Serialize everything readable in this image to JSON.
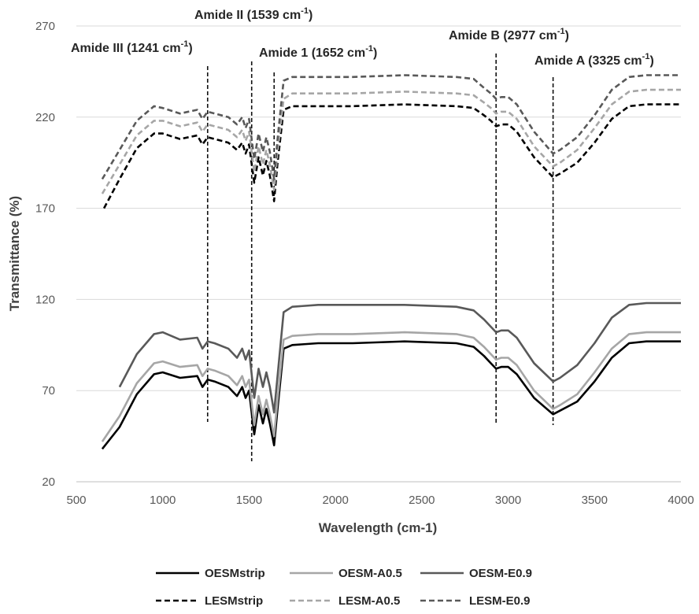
{
  "chart_data": {
    "type": "line",
    "title": "",
    "xlabel": "Wavelength (cm-1)",
    "ylabel": "Transmittance (%)",
    "xlim": [
      500,
      4000
    ],
    "ylim": [
      20,
      270
    ],
    "x_ticks": [
      500,
      1000,
      1500,
      2000,
      2500,
      3000,
      3500,
      4000
    ],
    "y_ticks": [
      20,
      70,
      120,
      170,
      220,
      270
    ],
    "grid": "horizontal",
    "legend_position": "bottom",
    "annotations": [
      {
        "id": "amide-iii",
        "base": "Amide III (1241 cm",
        "sup": "-1",
        "tail": ")",
        "x": 1260
      },
      {
        "id": "amide-ii",
        "base": "Amide II (1539 cm",
        "sup": "-1",
        "tail": ")",
        "x": 1515
      },
      {
        "id": "amide-1",
        "base": "Amide 1 (1652 cm",
        "sup": "-1",
        "tail": ")",
        "x": 1645
      },
      {
        "id": "amide-b",
        "base": "Amide B (2977 cm",
        "sup": "-1",
        "tail": ")",
        "x": 2930
      },
      {
        "id": "amide-a",
        "base": "Amide A (3325 cm",
        "sup": "-1",
        "tail": ")",
        "x": 3260
      }
    ],
    "series": [
      {
        "name": "OESMstrip",
        "color": "#000000",
        "dash": "solid",
        "x": [
          650,
          750,
          850,
          950,
          1000,
          1100,
          1200,
          1230,
          1260,
          1300,
          1380,
          1430,
          1460,
          1480,
          1500,
          1530,
          1555,
          1580,
          1600,
          1620,
          1645,
          1665,
          1700,
          1750,
          1900,
          2100,
          2400,
          2700,
          2800,
          2860,
          2900,
          2930,
          2960,
          3000,
          3050,
          3150,
          3260,
          3300,
          3400,
          3500,
          3600,
          3700,
          3800,
          4000
        ],
        "y": [
          38,
          50,
          68,
          79,
          80,
          77,
          78,
          72,
          76,
          75,
          72,
          67,
          72,
          66,
          70,
          46,
          62,
          52,
          60,
          52,
          40,
          60,
          93,
          95,
          96,
          96,
          97,
          96,
          94,
          89,
          85,
          82,
          83,
          83,
          79,
          66,
          57,
          59,
          64,
          75,
          88,
          96,
          97,
          97
        ]
      },
      {
        "name": "OESM-A0.5",
        "color": "#a6a6a6",
        "dash": "solid",
        "x": [
          650,
          750,
          850,
          950,
          1000,
          1100,
          1200,
          1230,
          1260,
          1300,
          1380,
          1430,
          1460,
          1480,
          1500,
          1530,
          1555,
          1580,
          1600,
          1620,
          1645,
          1665,
          1700,
          1750,
          1900,
          2100,
          2400,
          2700,
          2800,
          2860,
          2900,
          2930,
          2960,
          3000,
          3050,
          3150,
          3260,
          3300,
          3400,
          3500,
          3600,
          3700,
          3800,
          4000
        ],
        "y": [
          42,
          56,
          74,
          85,
          86,
          83,
          84,
          78,
          82,
          81,
          78,
          73,
          78,
          72,
          76,
          51,
          67,
          57,
          65,
          57,
          45,
          65,
          98,
          100,
          101,
          101,
          102,
          101,
          99,
          94,
          90,
          87,
          88,
          88,
          84,
          70,
          60,
          62,
          68,
          80,
          93,
          101,
          102,
          102
        ]
      },
      {
        "name": "OESM-E0.9",
        "color": "#595959",
        "dash": "solid",
        "x": [
          750,
          850,
          950,
          1000,
          1100,
          1200,
          1230,
          1260,
          1300,
          1380,
          1430,
          1460,
          1480,
          1500,
          1530,
          1555,
          1580,
          1600,
          1620,
          1645,
          1665,
          1700,
          1750,
          1900,
          2100,
          2400,
          2700,
          2800,
          2860,
          2900,
          2930,
          2960,
          3000,
          3050,
          3150,
          3260,
          3300,
          3400,
          3500,
          3600,
          3700,
          3800,
          4000
        ],
        "y": [
          72,
          90,
          101,
          102,
          98,
          99,
          93,
          97,
          96,
          93,
          88,
          93,
          87,
          92,
          66,
          82,
          72,
          80,
          72,
          58,
          78,
          113,
          116,
          117,
          117,
          117,
          116,
          114,
          109,
          105,
          102,
          103,
          103,
          99,
          85,
          75,
          77,
          84,
          96,
          110,
          117,
          118,
          118
        ]
      },
      {
        "name": "LESMstrip",
        "color": "#000000",
        "dash": "dashed",
        "x": [
          660,
          750,
          850,
          950,
          1000,
          1100,
          1200,
          1230,
          1260,
          1300,
          1380,
          1430,
          1460,
          1480,
          1500,
          1530,
          1555,
          1580,
          1600,
          1620,
          1645,
          1665,
          1700,
          1750,
          1900,
          2100,
          2400,
          2700,
          2800,
          2860,
          2900,
          2930,
          2960,
          3000,
          3050,
          3150,
          3260,
          3300,
          3400,
          3500,
          3600,
          3700,
          3800,
          4000
        ],
        "y": [
          170,
          186,
          203,
          211,
          211,
          208,
          210,
          205,
          209,
          208,
          206,
          202,
          206,
          200,
          205,
          184,
          198,
          188,
          196,
          188,
          174,
          195,
          224,
          226,
          226,
          226,
          227,
          226,
          225,
          221,
          218,
          215,
          216,
          216,
          212,
          198,
          187,
          189,
          195,
          206,
          219,
          226,
          227,
          227
        ]
      },
      {
        "name": "LESM-A0.5",
        "color": "#a6a6a6",
        "dash": "dashed",
        "x": [
          650,
          750,
          850,
          950,
          1000,
          1100,
          1200,
          1230,
          1260,
          1300,
          1380,
          1430,
          1460,
          1480,
          1500,
          1530,
          1555,
          1580,
          1600,
          1620,
          1645,
          1665,
          1700,
          1750,
          1900,
          2100,
          2400,
          2700,
          2800,
          2860,
          2900,
          2930,
          2960,
          3000,
          3050,
          3150,
          3260,
          3300,
          3400,
          3500,
          3600,
          3700,
          3800,
          4000
        ],
        "y": [
          178,
          194,
          210,
          218,
          218,
          215,
          217,
          212,
          216,
          215,
          213,
          209,
          213,
          207,
          212,
          190,
          204,
          194,
          202,
          194,
          180,
          201,
          230,
          233,
          233,
          233,
          234,
          233,
          232,
          228,
          225,
          222,
          223,
          223,
          219,
          204,
          193,
          195,
          202,
          214,
          227,
          234,
          235,
          235
        ]
      },
      {
        "name": "LESM-E0.9",
        "color": "#595959",
        "dash": "dashed",
        "x": [
          650,
          750,
          850,
          950,
          1000,
          1100,
          1200,
          1230,
          1260,
          1300,
          1380,
          1430,
          1460,
          1480,
          1500,
          1530,
          1555,
          1580,
          1600,
          1620,
          1645,
          1665,
          1700,
          1750,
          1900,
          2100,
          2400,
          2700,
          2800,
          2860,
          2900,
          2930,
          2960,
          3000,
          3050,
          3150,
          3260,
          3300,
          3400,
          3500,
          3600,
          3700,
          3800,
          4000
        ],
        "y": [
          186,
          202,
          218,
          226,
          225,
          222,
          224,
          219,
          223,
          222,
          220,
          216,
          220,
          214,
          219,
          197,
          211,
          201,
          209,
          201,
          186,
          208,
          240,
          242,
          242,
          242,
          243,
          242,
          241,
          236,
          233,
          230,
          231,
          231,
          227,
          212,
          200,
          202,
          209,
          221,
          235,
          242,
          243,
          243
        ]
      }
    ]
  }
}
